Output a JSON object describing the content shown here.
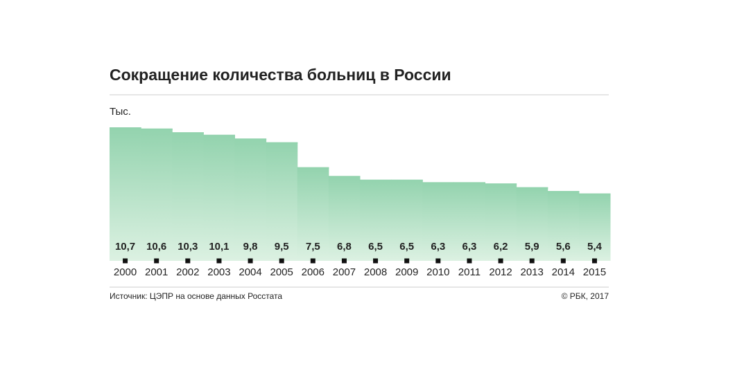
{
  "chart_data": {
    "type": "bar",
    "title": "Сокращение количества больниц в России",
    "unit": "Тыс.",
    "source": "Источник: ЦЭПР на основе данных Росстата",
    "copyright": "© РБК, 2017",
    "categories": [
      "2000",
      "2001",
      "2002",
      "2003",
      "2004",
      "2005",
      "2006",
      "2007",
      "2008",
      "2009",
      "2010",
      "2011",
      "2012",
      "2013",
      "2014",
      "2015"
    ],
    "values": [
      10.7,
      10.6,
      10.3,
      10.1,
      9.8,
      9.5,
      7.5,
      6.8,
      6.5,
      6.5,
      6.3,
      6.3,
      6.2,
      5.9,
      5.6,
      5.4
    ],
    "value_labels": [
      "10,7",
      "10,6",
      "10,3",
      "10,1",
      "9,8",
      "9,5",
      "7,5",
      "6,8",
      "6,5",
      "6,5",
      "6,3",
      "6,3",
      "6,2",
      "5,9",
      "5,6",
      "5,4"
    ],
    "color": "#93d3ae",
    "ylim": [
      0,
      11
    ]
  }
}
